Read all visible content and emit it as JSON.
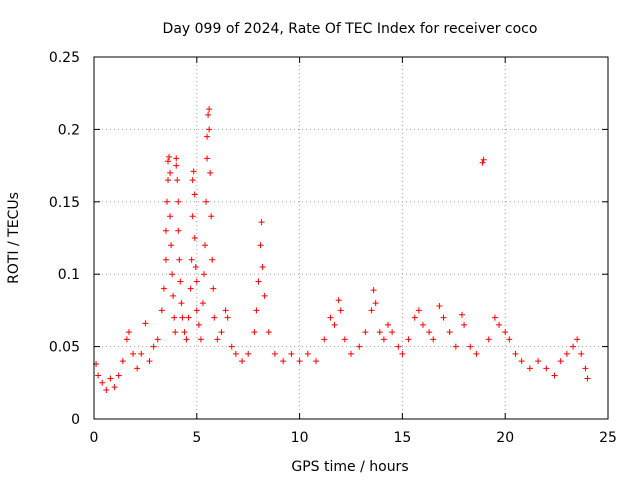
{
  "chart_data": {
    "type": "scatter",
    "title": "Day 099 of 2024, Rate Of TEC Index for receiver coco",
    "xlabel": "GPS time / hours",
    "ylabel": "ROTI / TECUs",
    "xlim": [
      0,
      25
    ],
    "ylim": [
      0,
      0.25
    ],
    "xticks": [
      0,
      5,
      10,
      15,
      20,
      25
    ],
    "xtick_labels": [
      "0",
      "5",
      "10",
      "15",
      "20",
      "25"
    ],
    "yticks": [
      0,
      0.05,
      0.1,
      0.15,
      0.2,
      0.25
    ],
    "ytick_labels": [
      "0",
      "0.05",
      "0.1",
      "0.15",
      "0.2",
      "0.25"
    ],
    "grid": true,
    "marker": "+",
    "color": "#ff0000",
    "series": [
      {
        "name": "ROTI",
        "points": [
          [
            0.1,
            0.038
          ],
          [
            0.2,
            0.03
          ],
          [
            0.4,
            0.025
          ],
          [
            0.6,
            0.02
          ],
          [
            0.8,
            0.028
          ],
          [
            1.0,
            0.022
          ],
          [
            1.2,
            0.03
          ],
          [
            1.4,
            0.04
          ],
          [
            1.6,
            0.055
          ],
          [
            1.7,
            0.06
          ],
          [
            1.9,
            0.045
          ],
          [
            2.1,
            0.035
          ],
          [
            2.3,
            0.045
          ],
          [
            2.5,
            0.066
          ],
          [
            2.7,
            0.04
          ],
          [
            2.9,
            0.05
          ],
          [
            3.1,
            0.055
          ],
          [
            3.3,
            0.075
          ],
          [
            3.4,
            0.09
          ],
          [
            3.5,
            0.11
          ],
          [
            3.5,
            0.13
          ],
          [
            3.55,
            0.15
          ],
          [
            3.6,
            0.165
          ],
          [
            3.6,
            0.178
          ],
          [
            3.65,
            0.181
          ],
          [
            3.7,
            0.17
          ],
          [
            3.7,
            0.14
          ],
          [
            3.75,
            0.12
          ],
          [
            3.8,
            0.1
          ],
          [
            3.85,
            0.085
          ],
          [
            3.9,
            0.07
          ],
          [
            3.95,
            0.06
          ],
          [
            4.0,
            0.18
          ],
          [
            4.0,
            0.175
          ],
          [
            4.05,
            0.165
          ],
          [
            4.1,
            0.15
          ],
          [
            4.1,
            0.13
          ],
          [
            4.15,
            0.11
          ],
          [
            4.2,
            0.095
          ],
          [
            4.25,
            0.08
          ],
          [
            4.3,
            0.07
          ],
          [
            4.4,
            0.06
          ],
          [
            4.5,
            0.055
          ],
          [
            4.6,
            0.07
          ],
          [
            4.7,
            0.09
          ],
          [
            4.75,
            0.11
          ],
          [
            4.8,
            0.14
          ],
          [
            4.8,
            0.165
          ],
          [
            4.85,
            0.171
          ],
          [
            4.9,
            0.155
          ],
          [
            4.9,
            0.125
          ],
          [
            4.95,
            0.105
          ],
          [
            5.0,
            0.095
          ],
          [
            5.0,
            0.075
          ],
          [
            5.1,
            0.065
          ],
          [
            5.2,
            0.055
          ],
          [
            5.3,
            0.08
          ],
          [
            5.35,
            0.1
          ],
          [
            5.4,
            0.12
          ],
          [
            5.45,
            0.15
          ],
          [
            5.5,
            0.18
          ],
          [
            5.5,
            0.195
          ],
          [
            5.55,
            0.21
          ],
          [
            5.6,
            0.214
          ],
          [
            5.6,
            0.2
          ],
          [
            5.65,
            0.17
          ],
          [
            5.7,
            0.14
          ],
          [
            5.75,
            0.11
          ],
          [
            5.8,
            0.09
          ],
          [
            5.85,
            0.07
          ],
          [
            6.0,
            0.055
          ],
          [
            6.2,
            0.06
          ],
          [
            6.4,
            0.075
          ],
          [
            6.5,
            0.07
          ],
          [
            6.7,
            0.05
          ],
          [
            6.9,
            0.045
          ],
          [
            7.2,
            0.04
          ],
          [
            7.5,
            0.045
          ],
          [
            7.8,
            0.06
          ],
          [
            7.9,
            0.075
          ],
          [
            8.0,
            0.095
          ],
          [
            8.1,
            0.12
          ],
          [
            8.15,
            0.136
          ],
          [
            8.2,
            0.105
          ],
          [
            8.3,
            0.085
          ],
          [
            8.5,
            0.06
          ],
          [
            8.8,
            0.045
          ],
          [
            9.2,
            0.04
          ],
          [
            9.6,
            0.045
          ],
          [
            10.0,
            0.04
          ],
          [
            10.4,
            0.045
          ],
          [
            10.8,
            0.04
          ],
          [
            11.2,
            0.055
          ],
          [
            11.5,
            0.07
          ],
          [
            11.7,
            0.065
          ],
          [
            11.9,
            0.082
          ],
          [
            12.0,
            0.075
          ],
          [
            12.2,
            0.055
          ],
          [
            12.5,
            0.045
          ],
          [
            12.9,
            0.05
          ],
          [
            13.2,
            0.06
          ],
          [
            13.5,
            0.075
          ],
          [
            13.6,
            0.089
          ],
          [
            13.7,
            0.08
          ],
          [
            13.9,
            0.06
          ],
          [
            14.1,
            0.055
          ],
          [
            14.3,
            0.065
          ],
          [
            14.5,
            0.06
          ],
          [
            14.8,
            0.05
          ],
          [
            15.0,
            0.045
          ],
          [
            15.3,
            0.055
          ],
          [
            15.6,
            0.07
          ],
          [
            15.8,
            0.075
          ],
          [
            16.0,
            0.065
          ],
          [
            16.3,
            0.06
          ],
          [
            16.5,
            0.055
          ],
          [
            16.8,
            0.078
          ],
          [
            17.0,
            0.07
          ],
          [
            17.3,
            0.06
          ],
          [
            17.6,
            0.05
          ],
          [
            17.9,
            0.072
          ],
          [
            18.0,
            0.065
          ],
          [
            18.3,
            0.05
          ],
          [
            18.6,
            0.045
          ],
          [
            18.9,
            0.177
          ],
          [
            18.95,
            0.179
          ],
          [
            19.2,
            0.055
          ],
          [
            19.5,
            0.07
          ],
          [
            19.7,
            0.065
          ],
          [
            20.0,
            0.06
          ],
          [
            20.2,
            0.055
          ],
          [
            20.5,
            0.045
          ],
          [
            20.8,
            0.04
          ],
          [
            21.2,
            0.035
          ],
          [
            21.6,
            0.04
          ],
          [
            22.0,
            0.035
          ],
          [
            22.4,
            0.03
          ],
          [
            22.7,
            0.04
          ],
          [
            23.0,
            0.045
          ],
          [
            23.3,
            0.05
          ],
          [
            23.5,
            0.055
          ],
          [
            23.7,
            0.045
          ],
          [
            23.9,
            0.035
          ],
          [
            24.0,
            0.028
          ]
        ]
      }
    ]
  }
}
